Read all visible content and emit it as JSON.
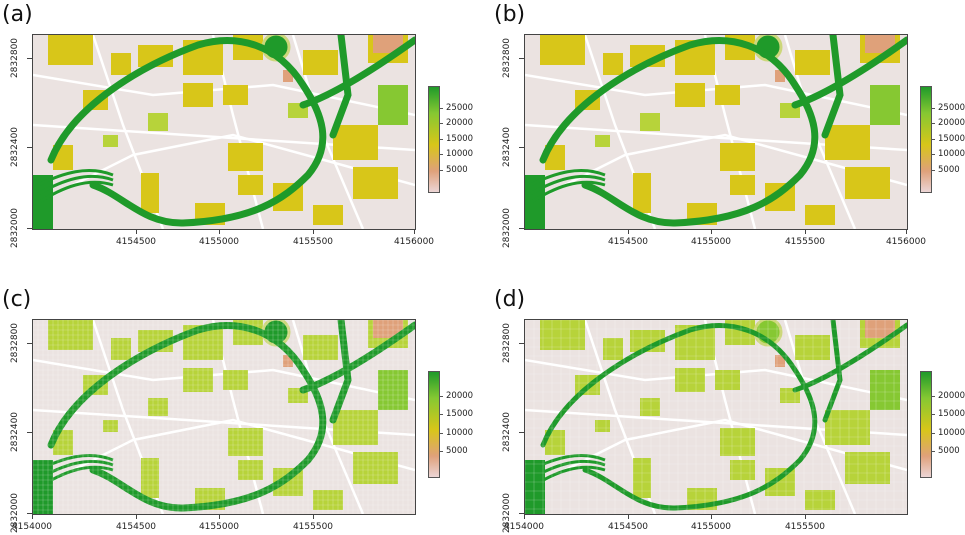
{
  "panels": [
    {
      "label": "(a)",
      "x_ticks": [
        "4154500",
        "4155000",
        "4155500",
        "4156000"
      ],
      "y_ticks": [
        "2832000",
        "2832400",
        "2832800"
      ],
      "legend_ticks": [
        "25000",
        "20000",
        "15000",
        "10000",
        "5000"
      ],
      "style": "smooth"
    },
    {
      "label": "(b)",
      "x_ticks": [
        "4154500",
        "4155000",
        "4155500",
        "4156000"
      ],
      "y_ticks": [
        "2832000",
        "2832400",
        "2832800"
      ],
      "legend_ticks": [
        "25000",
        "20000",
        "15000",
        "10000",
        "5000"
      ],
      "style": "smooth"
    },
    {
      "label": "(c)",
      "x_ticks": [
        "4154000",
        "4154500",
        "4155000",
        "4155500"
      ],
      "y_ticks": [
        "2832000",
        "2832400",
        "2832800"
      ],
      "legend_ticks": [
        "20000",
        "15000",
        "10000",
        "5000"
      ],
      "style": "pixelated"
    },
    {
      "label": "(d)",
      "x_ticks": [
        "4154000",
        "4154500",
        "4155000",
        "4155500"
      ],
      "y_ticks": [
        "2832000",
        "2832400",
        "2832800"
      ],
      "legend_ticks": [
        "20000",
        "15000",
        "10000",
        "5000"
      ],
      "style": "coarse"
    }
  ],
  "colors": {
    "background": "#ebe3e1",
    "street": "#ffffff",
    "high": "#1f9a2a",
    "mid_green": "#86c832",
    "yellow_green": "#b7d33a",
    "yellow": "#d8c619",
    "orange": "#dfa17a",
    "low": "#ecd5d5"
  }
}
